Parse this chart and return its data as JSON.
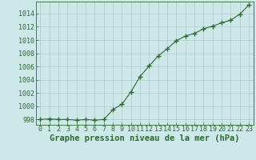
{
  "x": [
    0,
    1,
    2,
    3,
    4,
    5,
    6,
    7,
    8,
    9,
    10,
    11,
    12,
    13,
    14,
    15,
    16,
    17,
    18,
    19,
    20,
    21,
    22,
    23
  ],
  "y": [
    998.0,
    998.1,
    998.0,
    998.0,
    997.9,
    998.0,
    997.9,
    998.0,
    999.5,
    1000.3,
    1002.2,
    1004.5,
    1006.1,
    1007.6,
    1008.7,
    1009.9,
    1010.6,
    1011.0,
    1011.7,
    1012.1,
    1012.6,
    1013.0,
    1013.9,
    1015.3
  ],
  "line_color": "#2d6a2d",
  "marker": "+",
  "marker_size": 4,
  "marker_lw": 1.0,
  "bg_color": "#cce8e8",
  "grid_color": "#b0c8c8",
  "xlabel": "Graphe pression niveau de la mer (hPa)",
  "xlabel_fontsize": 7.5,
  "xlabel_color": "#2d6a2d",
  "ylabel_ticks": [
    998,
    1000,
    1002,
    1004,
    1006,
    1008,
    1010,
    1012,
    1014
  ],
  "xlim": [
    -0.5,
    23.5
  ],
  "ylim": [
    997.2,
    1015.8
  ],
  "xtick_labels": [
    "0",
    "1",
    "2",
    "3",
    "4",
    "5",
    "6",
    "7",
    "8",
    "9",
    "10",
    "11",
    "12",
    "13",
    "14",
    "15",
    "16",
    "17",
    "18",
    "19",
    "20",
    "21",
    "22",
    "23"
  ],
  "tick_fontsize": 6,
  "tick_color": "#2d6a2d",
  "line_width": 0.8
}
